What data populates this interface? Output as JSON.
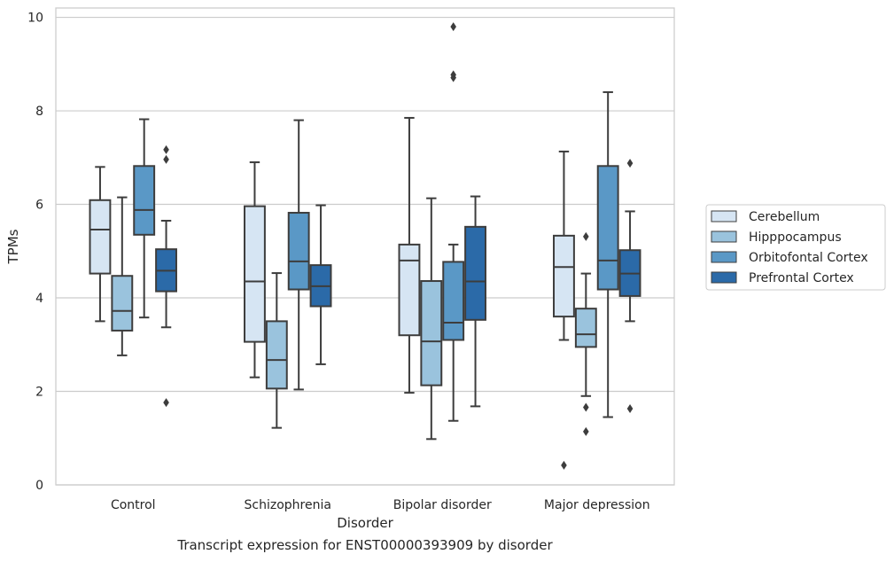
{
  "caption": "Transcript expression for ENST00000393909 by disorder",
  "chart_data": {
    "type": "boxplot",
    "title": "",
    "xlabel": "Disorder",
    "ylabel": "TPMs",
    "ylim": [
      0,
      10.2
    ],
    "yticks": [
      0,
      2,
      4,
      6,
      8,
      10
    ],
    "grid": "horizontal",
    "legend_position": "center-right",
    "categories": [
      "Control",
      "Schizophrenia",
      "Bipolar disorder",
      "Major depression"
    ],
    "series": [
      {
        "name": "Cerebellum",
        "color": "#d6e5f3",
        "boxes": [
          {
            "whislo": 3.5,
            "q1": 4.52,
            "med": 5.46,
            "q3": 6.09,
            "whishi": 6.8,
            "fliers": []
          },
          {
            "whislo": 2.3,
            "q1": 3.06,
            "med": 4.35,
            "q3": 5.96,
            "whishi": 6.9,
            "fliers": []
          },
          {
            "whislo": 1.97,
            "q1": 3.2,
            "med": 4.8,
            "q3": 5.14,
            "whishi": 7.85,
            "fliers": []
          },
          {
            "whislo": 3.1,
            "q1": 3.6,
            "med": 4.66,
            "q3": 5.33,
            "whishi": 7.13,
            "fliers": [
              0.42
            ]
          }
        ]
      },
      {
        "name": "Hipppocampus",
        "color": "#9ac3dd",
        "boxes": [
          {
            "whislo": 2.77,
            "q1": 3.3,
            "med": 3.72,
            "q3": 4.47,
            "whishi": 6.15,
            "fliers": []
          },
          {
            "whislo": 1.22,
            "q1": 2.06,
            "med": 2.67,
            "q3": 3.5,
            "whishi": 4.53,
            "fliers": []
          },
          {
            "whislo": 0.98,
            "q1": 2.13,
            "med": 3.07,
            "q3": 4.36,
            "whishi": 6.13,
            "fliers": []
          },
          {
            "whislo": 1.9,
            "q1": 2.95,
            "med": 3.22,
            "q3": 3.77,
            "whishi": 4.52,
            "fliers": [
              5.31,
              1.66,
              1.14
            ]
          }
        ]
      },
      {
        "name": "Orbitofontal Cortex",
        "color": "#5a98c6",
        "boxes": [
          {
            "whislo": 3.58,
            "q1": 5.35,
            "med": 5.88,
            "q3": 6.82,
            "whishi": 7.82,
            "fliers": []
          },
          {
            "whislo": 2.04,
            "q1": 4.18,
            "med": 4.78,
            "q3": 5.82,
            "whishi": 7.8,
            "fliers": []
          },
          {
            "whislo": 1.37,
            "q1": 3.1,
            "med": 3.47,
            "q3": 4.77,
            "whishi": 5.14,
            "fliers": [
              9.8,
              8.77,
              8.71
            ]
          },
          {
            "whislo": 1.45,
            "q1": 4.18,
            "med": 4.8,
            "q3": 6.82,
            "whishi": 8.4,
            "fliers": []
          }
        ]
      },
      {
        "name": "Prefrontal Cortex",
        "color": "#2b6aa8",
        "boxes": [
          {
            "whislo": 3.37,
            "q1": 4.14,
            "med": 4.58,
            "q3": 5.04,
            "whishi": 5.65,
            "fliers": [
              7.17,
              6.96,
              1.76
            ]
          },
          {
            "whislo": 2.58,
            "q1": 3.82,
            "med": 4.25,
            "q3": 4.7,
            "whishi": 5.98,
            "fliers": []
          },
          {
            "whislo": 1.68,
            "q1": 3.53,
            "med": 4.35,
            "q3": 5.52,
            "whishi": 6.17,
            "fliers": []
          },
          {
            "whislo": 3.5,
            "q1": 4.04,
            "med": 4.52,
            "q3": 5.02,
            "whishi": 5.85,
            "fliers": [
              6.88,
              1.63
            ]
          }
        ]
      }
    ]
  }
}
